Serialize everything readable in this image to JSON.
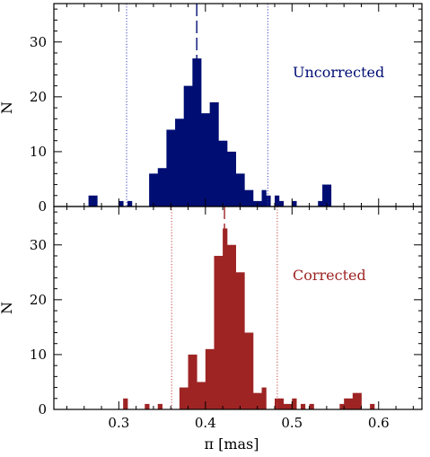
{
  "chart_data": [
    {
      "type": "histogram",
      "annotation": "Uncorrected",
      "ylabel": "N",
      "xlabel": "",
      "xlim": [
        0.225,
        0.65
      ],
      "ylim": [
        0,
        37
      ],
      "y_ticks": [
        0,
        10,
        20,
        30
      ],
      "bin_width": 0.005,
      "bar_color": "#000e73",
      "line_color": "#3a3ab8",
      "bins_start": [
        0.265,
        0.27,
        0.3,
        0.31,
        0.335,
        0.34,
        0.345,
        0.35,
        0.355,
        0.36,
        0.365,
        0.37,
        0.375,
        0.38,
        0.385,
        0.39,
        0.395,
        0.4,
        0.405,
        0.41,
        0.415,
        0.42,
        0.425,
        0.43,
        0.435,
        0.44,
        0.445,
        0.45,
        0.455,
        0.46,
        0.465,
        0.47,
        0.48,
        0.485,
        0.5,
        0.53,
        0.535,
        0.54
      ],
      "counts": [
        2,
        2,
        1,
        1,
        6,
        6,
        7,
        7,
        14,
        14,
        16,
        16,
        22,
        22,
        27,
        27,
        17,
        17,
        19,
        19,
        12,
        12,
        10,
        10,
        6,
        6,
        3,
        3,
        1,
        1,
        3,
        2,
        2,
        1,
        1,
        1,
        4,
        4
      ],
      "dashed_line": 0.39,
      "dotted_lines": [
        0.309,
        0.472
      ]
    },
    {
      "type": "histogram",
      "annotation": "Corrected",
      "ylabel": "N",
      "xlabel": "π [mas]",
      "xlim": [
        0.225,
        0.65
      ],
      "ylim": [
        0,
        37
      ],
      "x_ticks": [
        0.3,
        0.4,
        0.5,
        0.6
      ],
      "x_tick_labels": [
        "0.3",
        "0.4",
        "0.5",
        "0.6"
      ],
      "y_ticks": [
        0,
        10,
        20,
        30
      ],
      "bin_width": 0.005,
      "bar_color": "#9e2424",
      "line_color": "#c04040",
      "bins_start": [
        0.305,
        0.33,
        0.345,
        0.37,
        0.375,
        0.38,
        0.385,
        0.39,
        0.395,
        0.4,
        0.405,
        0.41,
        0.415,
        0.42,
        0.425,
        0.43,
        0.435,
        0.44,
        0.445,
        0.45,
        0.455,
        0.46,
        0.465,
        0.48,
        0.485,
        0.49,
        0.495,
        0.5,
        0.51,
        0.52,
        0.555,
        0.56,
        0.565,
        0.57,
        0.575,
        0.59
      ],
      "counts": [
        2,
        1,
        1,
        4,
        4,
        10,
        10,
        5,
        5,
        11,
        11,
        28,
        28,
        33,
        30,
        30,
        25,
        25,
        14,
        14,
        3,
        3,
        4,
        2,
        2,
        1,
        1,
        2,
        1,
        1,
        1,
        2,
        2,
        3,
        3,
        1
      ],
      "dashed_line": 0.422,
      "dotted_lines": [
        0.361,
        0.483
      ]
    }
  ]
}
